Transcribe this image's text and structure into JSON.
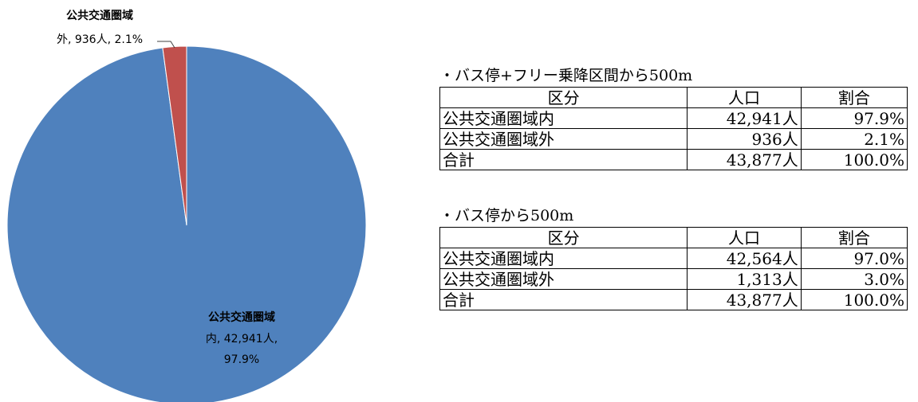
{
  "chart_data": {
    "type": "pie",
    "slices": [
      {
        "name": "公共交通圏域内",
        "value": 42941,
        "percent": 97.9,
        "color": "#4F81BD",
        "label_lines": [
          "公共交通圏域",
          "内, 42,941人,",
          "97.9%"
        ]
      },
      {
        "name": "公共交通圏域外",
        "value": 936,
        "percent": 2.1,
        "color": "#C0504D",
        "label_lines": [
          "公共交通圏域",
          "外, 936人, 2.1%"
        ]
      }
    ]
  },
  "tables": [
    {
      "title": "・バス停+フリー乗降区間から500m",
      "header": [
        "区分",
        "人口",
        "割合"
      ],
      "rows": [
        [
          "公共交通圏域内",
          "42,941人",
          "97.9%"
        ],
        [
          "公共交通圏域外",
          "936人",
          "2.1%"
        ],
        [
          "合計",
          "43,877人",
          "100.0%"
        ]
      ]
    },
    {
      "title": "・バス停から500m",
      "header": [
        "区分",
        "人口",
        "割合"
      ],
      "rows": [
        [
          "公共交通圏域内",
          "42,564人",
          "97.0%"
        ],
        [
          "公共交通圏域外",
          "1,313人",
          "3.0%"
        ],
        [
          "合計",
          "43,877人",
          "100.0%"
        ]
      ]
    }
  ]
}
